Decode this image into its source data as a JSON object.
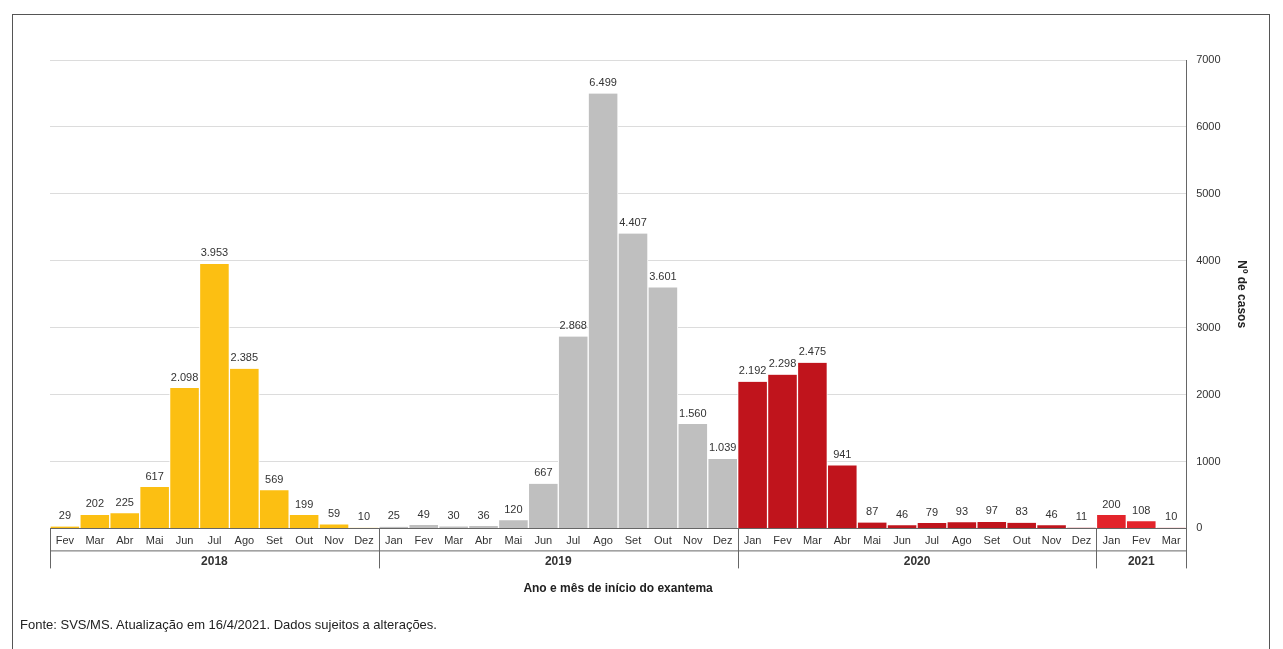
{
  "chart_data": {
    "type": "bar",
    "stacked": true,
    "xlabel": "Ano e mês de início do exantema",
    "ylabel": "Nº de casos",
    "categories": [
      "Fev",
      "Mar",
      "Abr",
      "Mai",
      "Jun",
      "Jul",
      "Ago",
      "Set",
      "Out",
      "Nov",
      "Dez",
      "Jan",
      "Fev",
      "Mar",
      "Abr",
      "Mai",
      "Jun",
      "Jul",
      "Ago",
      "Set",
      "Out",
      "Nov",
      "Dez",
      "Jan",
      "Fev",
      "Mar",
      "Abr",
      "Mai",
      "Jun",
      "Jul",
      "Ago",
      "Set",
      "Out",
      "Nov",
      "Dez",
      "Jan",
      "Fev",
      "Mar"
    ],
    "series": [
      {
        "name": "2018",
        "color": "#fcbf12",
        "values": [
          29,
          202,
          225,
          617,
          2098,
          3953,
          2385,
          569,
          199,
          59,
          10,
          null,
          null,
          null,
          null,
          null,
          null,
          null,
          null,
          null,
          null,
          null,
          null,
          null,
          null,
          null,
          null,
          null,
          null,
          null,
          null,
          null,
          null,
          null,
          null,
          null,
          null,
          null
        ],
        "value_labels": [
          "29",
          "202",
          "225",
          "617",
          "2.098",
          "3.953",
          "2.385",
          "569",
          "199",
          "59",
          "10",
          null,
          null,
          null,
          null,
          null,
          null,
          null,
          null,
          null,
          null,
          null,
          null,
          null,
          null,
          null,
          null,
          null,
          null,
          null,
          null,
          null,
          null,
          null,
          null,
          null,
          null,
          null
        ]
      },
      {
        "name": "2019",
        "color": "#bfbfbf",
        "values": [
          null,
          null,
          null,
          null,
          null,
          null,
          null,
          null,
          null,
          null,
          null,
          25,
          49,
          30,
          36,
          120,
          667,
          2868,
          6499,
          4407,
          3601,
          1560,
          1039,
          null,
          null,
          null,
          null,
          null,
          null,
          null,
          null,
          null,
          null,
          null,
          null,
          null,
          null,
          null
        ],
        "value_labels": [
          null,
          null,
          null,
          null,
          null,
          null,
          null,
          null,
          null,
          null,
          null,
          "25",
          "49",
          "30",
          "36",
          "120",
          "667",
          "2.868",
          "6.499",
          "4.407",
          "3.601",
          "1.560",
          "1.039",
          null,
          null,
          null,
          null,
          null,
          null,
          null,
          null,
          null,
          null,
          null,
          null,
          null,
          null,
          null
        ]
      },
      {
        "name": "2020",
        "color": "#c0141c",
        "values": [
          null,
          null,
          null,
          null,
          null,
          null,
          null,
          null,
          null,
          null,
          null,
          null,
          null,
          null,
          null,
          null,
          null,
          null,
          null,
          null,
          null,
          null,
          null,
          2192,
          2298,
          2475,
          941,
          87,
          46,
          79,
          93,
          97,
          83,
          46,
          11,
          null,
          null,
          null
        ],
        "value_labels": [
          null,
          null,
          null,
          null,
          null,
          null,
          null,
          null,
          null,
          null,
          null,
          null,
          null,
          null,
          null,
          null,
          null,
          null,
          null,
          null,
          null,
          null,
          null,
          "2.192",
          "2.298",
          "2.475",
          "941",
          "87",
          "46",
          "79",
          "93",
          "97",
          "83",
          "46",
          "11",
          null,
          null,
          null
        ]
      },
      {
        "name": "2021",
        "color": "#e3242b",
        "values": [
          null,
          null,
          null,
          null,
          null,
          null,
          null,
          null,
          null,
          null,
          null,
          null,
          null,
          null,
          null,
          null,
          null,
          null,
          null,
          null,
          null,
          null,
          null,
          null,
          null,
          null,
          null,
          null,
          null,
          null,
          null,
          null,
          null,
          null,
          null,
          200,
          108,
          10
        ],
        "value_labels": [
          null,
          null,
          null,
          null,
          null,
          null,
          null,
          null,
          null,
          null,
          null,
          null,
          null,
          null,
          null,
          null,
          null,
          null,
          null,
          null,
          null,
          null,
          null,
          null,
          null,
          null,
          null,
          null,
          null,
          null,
          null,
          null,
          null,
          null,
          null,
          "200",
          "108",
          "10"
        ]
      }
    ],
    "ylim": [
      0,
      7000
    ],
    "yticks": [
      0,
      1000,
      2000,
      3000,
      4000,
      5000,
      6000,
      7000
    ],
    "grid": "y",
    "legend": false,
    "annotations": [
      "Fonte: SVS/MS. Atualização em 16/4/2021. Dados sujeitos a alterações."
    ]
  }
}
